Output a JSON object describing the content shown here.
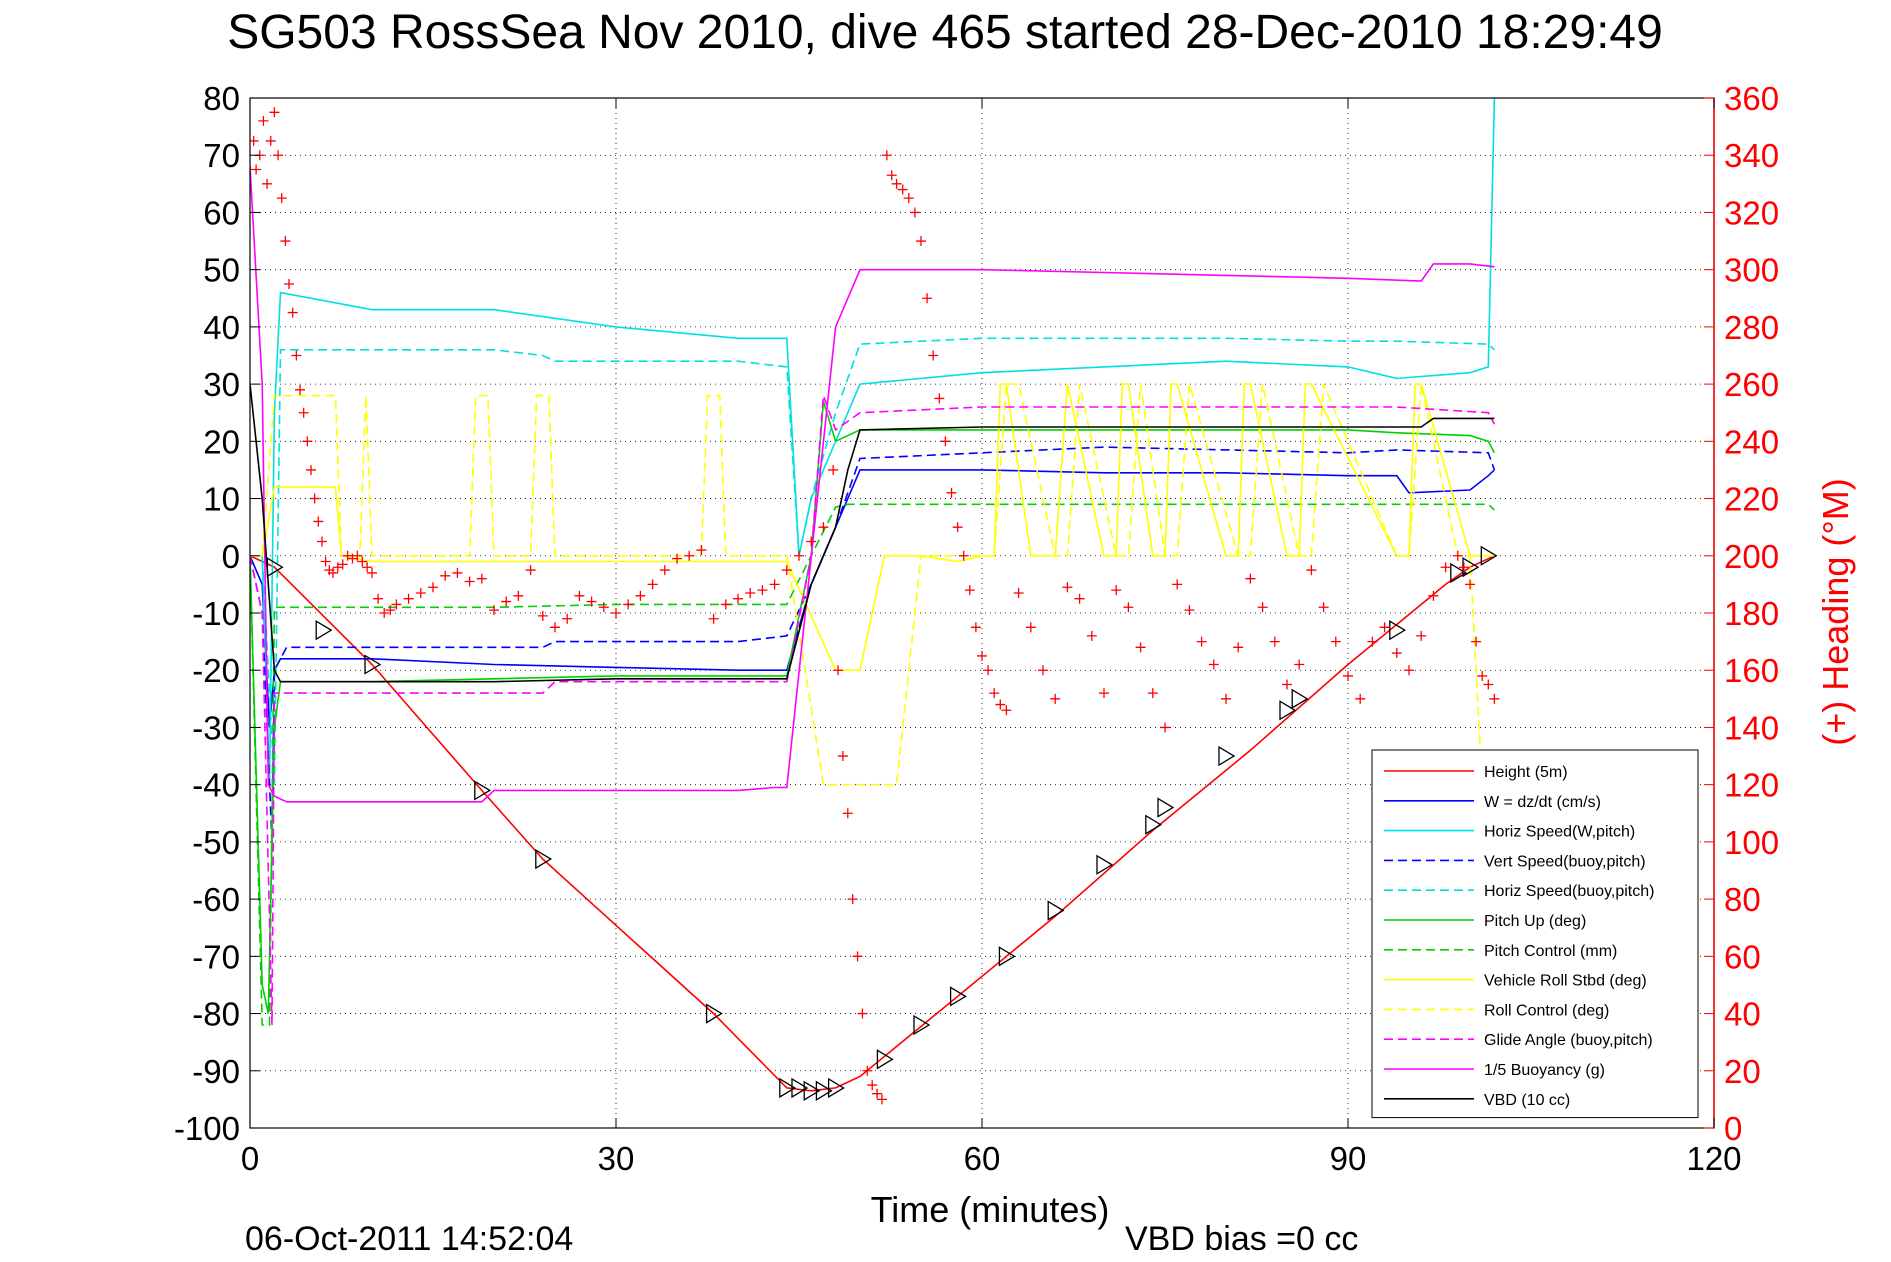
{
  "chart_data": {
    "type": "line",
    "title": "SG503 RossSea Nov 2010, dive 465 started 28-Dec-2010 18:29:49",
    "xlabel": "Time (minutes)",
    "y2label": "(+) Heading (°M)",
    "footer_left": "06-Oct-2011 14:52:04",
    "footer_right": "VBD bias =0 cc",
    "xlim": [
      0,
      120
    ],
    "ylim": [
      -100,
      80
    ],
    "y2lim": [
      0,
      360
    ],
    "xticks": [
      "0",
      "30",
      "60",
      "90",
      "120"
    ],
    "yticks": [
      "80",
      "70",
      "60",
      "50",
      "40",
      "30",
      "20",
      "10",
      "0",
      "-10",
      "-20",
      "-30",
      "-40",
      "-50",
      "-60",
      "-70",
      "-80",
      "-90",
      "-100"
    ],
    "y2ticks": [
      "360",
      "340",
      "320",
      "300",
      "280",
      "260",
      "240",
      "220",
      "200",
      "180",
      "160",
      "140",
      "120",
      "100",
      "80",
      "60",
      "40",
      "20",
      "0"
    ],
    "grid": true,
    "legend_position": "bottom-right",
    "series": [
      {
        "name": "Height (5m)",
        "color": "#ff0000",
        "style": "solid",
        "x": [
          0,
          2,
          10,
          19,
          24,
          38,
          44,
          46,
          48,
          50,
          58,
          66,
          74,
          82,
          90,
          98,
          100,
          102
        ],
        "y": [
          0,
          -2,
          -19,
          -41,
          -53,
          -80,
          -93,
          -93.5,
          -93,
          -91,
          -77,
          -63,
          -48,
          -34,
          -19,
          -5,
          -2,
          0
        ]
      },
      {
        "name": "W = dz/dt (cm/s)",
        "color": "#0000ff",
        "style": "solid",
        "x": [
          0,
          1,
          1.6,
          2,
          2.5,
          10,
          20,
          30,
          40,
          44,
          46,
          48,
          50,
          60,
          70,
          80,
          90,
          94,
          95,
          100,
          101.5,
          102
        ],
        "y": [
          0,
          -5,
          -30,
          -20,
          -18,
          -18,
          -19,
          -19.5,
          -20,
          -20,
          -5,
          5,
          15,
          15,
          14.5,
          14.5,
          14,
          14,
          11,
          11.5,
          14,
          15
        ]
      },
      {
        "name": "Horiz Speed(W,pitch)",
        "color": "#00e0e0",
        "style": "solid",
        "x": [
          0,
          1,
          1.6,
          2,
          2.5,
          10,
          20,
          30,
          40,
          44,
          45,
          46,
          48,
          50,
          60,
          70,
          80,
          90,
          94,
          100,
          101.5,
          102
        ],
        "y": [
          0,
          0,
          -40,
          25,
          46,
          43,
          43,
          40,
          38,
          38,
          0,
          10,
          20,
          30,
          32,
          33,
          34,
          33,
          31,
          32,
          33,
          80
        ]
      },
      {
        "name": "Vert Speed(buoy,pitch)",
        "color": "#0000ff",
        "style": "dashed",
        "x": [
          0,
          1,
          1.8,
          2,
          3,
          20,
          24,
          25,
          40,
          44,
          46,
          48,
          50,
          60,
          70,
          80,
          90,
          94,
          101.5,
          102
        ],
        "y": [
          0,
          -10,
          -50,
          -20,
          -16,
          -16,
          -16,
          -15,
          -15,
          -14,
          -5,
          5,
          17,
          18,
          19,
          18.5,
          18,
          18.5,
          18,
          15
        ]
      },
      {
        "name": "Horiz Speed(buoy,pitch)",
        "color": "#00e0e0",
        "style": "dashed",
        "x": [
          0,
          1,
          2,
          2.5,
          20,
          24,
          25,
          40,
          44,
          45,
          46,
          48,
          50,
          60,
          70,
          80,
          90,
          94,
          101.5,
          102
        ],
        "y": [
          0,
          0,
          -40,
          36,
          36,
          35,
          34,
          34,
          33,
          0,
          10,
          25,
          37,
          38,
          38,
          38,
          37.5,
          37.5,
          37,
          36
        ]
      },
      {
        "name": "Pitch Up (deg)",
        "color": "#00d000",
        "style": "solid",
        "x": [
          0,
          1,
          1.5,
          2,
          2.5,
          10,
          20,
          30,
          40,
          44,
          46,
          47,
          48,
          50,
          60,
          70,
          80,
          90,
          94,
          100,
          101.5,
          102
        ],
        "y": [
          0,
          -75,
          -80,
          -30,
          -22,
          -22,
          -21.5,
          -21,
          -21,
          -21,
          0,
          27,
          20,
          22,
          22,
          22,
          22,
          22,
          21.5,
          21,
          20,
          18
        ]
      },
      {
        "name": "Pitch Control (mm)",
        "color": "#00d000",
        "style": "dashed",
        "x": [
          0,
          1,
          1.6,
          2,
          2.2,
          10,
          20,
          30,
          40,
          44,
          48,
          49,
          60,
          70,
          80,
          90,
          94,
          101.5,
          102
        ],
        "y": [
          0,
          -82,
          -82,
          -9,
          -9,
          -9,
          -9,
          -8.5,
          -8.5,
          -8.5,
          8.5,
          9,
          9,
          9,
          9,
          9,
          9,
          9,
          8
        ]
      },
      {
        "name": "Vehicle Roll Stbd (deg)",
        "color": "#ffff00",
        "style": "solid",
        "x": [
          0,
          1,
          2,
          2.5,
          7,
          7.5,
          10,
          20,
          30,
          40,
          44,
          48,
          50,
          52,
          53,
          55,
          58,
          60,
          61,
          61.5,
          62,
          64,
          65,
          66,
          67,
          70,
          71,
          71.5,
          72,
          74,
          75,
          75.5,
          76,
          80,
          81,
          81.5,
          82,
          85,
          86,
          86.5,
          87,
          94,
          95,
          95.5,
          96,
          100,
          101,
          102
        ],
        "y": [
          0,
          0,
          12,
          12,
          12,
          0,
          -1,
          -1,
          -1,
          -1,
          -1,
          -20,
          -20,
          0,
          0,
          0,
          -1,
          0,
          0,
          30,
          30,
          0,
          0,
          0,
          30,
          0,
          0,
          30,
          30,
          0,
          0,
          30,
          30,
          0,
          0,
          30,
          30,
          0,
          0,
          30,
          30,
          0,
          0,
          30,
          30,
          0,
          0,
          0
        ]
      },
      {
        "name": "Roll Control (deg)",
        "color": "#ffff00",
        "style": "dashed",
        "x": [
          0,
          1,
          2,
          2.5,
          7,
          7.5,
          9,
          9.5,
          10,
          18,
          18.5,
          19.5,
          20,
          23,
          23.5,
          24.5,
          25,
          37,
          37.5,
          38.5,
          39,
          44,
          47,
          48,
          50,
          52,
          53,
          55,
          58,
          60,
          61,
          62,
          63,
          66,
          67,
          68,
          71,
          72,
          73,
          75,
          76,
          77,
          81,
          82,
          83,
          86,
          87,
          88,
          94,
          95,
          96,
          99,
          100,
          101,
          102
        ],
        "y": [
          0,
          0,
          28,
          28,
          28,
          0,
          0,
          28,
          0,
          0,
          28,
          28,
          0,
          0,
          28,
          28,
          0,
          0,
          28,
          28,
          0,
          0,
          -40,
          -40,
          -40,
          -40,
          -40,
          0,
          0,
          0,
          0,
          30,
          30,
          0,
          0,
          30,
          0,
          0,
          30,
          0,
          0,
          30,
          0,
          0,
          30,
          0,
          0,
          30,
          0,
          0,
          30,
          0,
          0,
          -40,
          -40
        ]
      },
      {
        "name": "Glide Angle (buoy,pitch)",
        "color": "#ff00ff",
        "style": "dashed",
        "x": [
          0,
          1,
          1.8,
          2,
          3,
          10,
          20,
          24,
          25,
          40,
          44,
          46,
          47,
          48,
          50,
          60,
          70,
          80,
          90,
          94,
          101.5,
          102
        ],
        "y": [
          0,
          -10,
          -82,
          -24,
          -24,
          -24,
          -24,
          -24,
          -22,
          -22,
          -22,
          0,
          28,
          22,
          25,
          26,
          26,
          26,
          26,
          26,
          25,
          23
        ]
      },
      {
        "name": "1/5 Buoyancy (g)",
        "color": "#ff00ff",
        "style": "solid",
        "x": [
          0,
          1,
          1.5,
          2,
          3,
          10,
          19,
          20,
          40,
          43,
          44,
          48,
          50,
          60,
          70,
          80,
          90,
          96,
          97,
          100,
          102
        ],
        "y": [
          68,
          30,
          -40,
          -42,
          -43,
          -43,
          -43,
          -41,
          -41,
          -40.5,
          -40.5,
          40,
          50,
          50,
          49.5,
          49,
          48.5,
          48,
          51,
          51,
          50.5
        ]
      },
      {
        "name": "VBD (10 cc)",
        "color": "#000000",
        "style": "solid",
        "x": [
          0,
          1,
          2,
          2.5,
          10,
          20,
          30,
          40,
          44,
          46,
          48,
          49,
          50,
          60,
          70,
          80,
          90,
          96,
          97,
          101,
          102
        ],
        "y": [
          30,
          10,
          -20,
          -22,
          -22,
          -22,
          -21.5,
          -21.5,
          -21.5,
          -5,
          5,
          15,
          22,
          22.5,
          22.5,
          22.5,
          22.5,
          22.5,
          24,
          24,
          24
        ]
      }
    ],
    "heading_series": {
      "name": "Heading",
      "axis": "right",
      "marker": "+",
      "color": "#ff0000",
      "x": [
        0.3,
        0.5,
        0.8,
        1.1,
        1.4,
        1.7,
        2.0,
        2.3,
        2.6,
        2.9,
        3.2,
        3.5,
        3.8,
        4.1,
        4.4,
        4.7,
        5.0,
        5.3,
        5.6,
        5.9,
        6.2,
        6.5,
        6.8,
        7.2,
        7.6,
        8.0,
        8.4,
        8.8,
        9.2,
        9.6,
        10.0,
        10.5,
        11.0,
        11.5,
        12.0,
        13.0,
        14.0,
        15.0,
        16.0,
        17.0,
        18.0,
        19.0,
        20.0,
        21.0,
        22.0,
        23.0,
        24.0,
        25.0,
        26.0,
        27.0,
        28.0,
        29.0,
        30.0,
        31.0,
        32.0,
        33.0,
        34.0,
        35.0,
        36.0,
        37.0,
        38.0,
        39.0,
        40.0,
        41.0,
        42.0,
        43.0,
        44.0,
        45.0,
        46.0,
        47.0,
        47.8,
        48.2,
        48.6,
        49.0,
        49.4,
        49.8,
        50.2,
        50.6,
        51.0,
        51.4,
        51.8,
        52.2,
        52.6,
        53.0,
        53.5,
        54.0,
        54.5,
        55.0,
        55.5,
        56.0,
        56.5,
        57.0,
        57.5,
        58.0,
        58.5,
        59.0,
        59.5,
        60.0,
        60.5,
        61.0,
        61.5,
        62.0,
        63.0,
        64.0,
        65.0,
        66.0,
        67.0,
        68.0,
        69.0,
        70.0,
        71.0,
        72.0,
        73.0,
        74.0,
        75.0,
        76.0,
        77.0,
        78.0,
        79.0,
        80.0,
        81.0,
        82.0,
        83.0,
        84.0,
        85.0,
        86.0,
        87.0,
        88.0,
        89.0,
        90.0,
        91.0,
        92.0,
        93.0,
        94.0,
        95.0,
        96.0,
        97.0,
        98.0,
        99.0,
        99.5,
        100.0,
        100.5,
        101.0,
        101.5,
        102.0
      ],
      "y": [
        345,
        335,
        340,
        352,
        330,
        345,
        355,
        340,
        325,
        310,
        295,
        285,
        270,
        258,
        250,
        240,
        230,
        220,
        212,
        205,
        198,
        195,
        194,
        196,
        197,
        200,
        199,
        200,
        198,
        196,
        194,
        185,
        180,
        181,
        183,
        185,
        187,
        189,
        193,
        194,
        191,
        192,
        181,
        184,
        186,
        195,
        179,
        175,
        178,
        186,
        184,
        182,
        180,
        183,
        186,
        190,
        195,
        199,
        200,
        202,
        178,
        183,
        185,
        187,
        188,
        190,
        195,
        200,
        205,
        210,
        230,
        160,
        130,
        110,
        80,
        60,
        40,
        20,
        15,
        12,
        10,
        340,
        333,
        330,
        328,
        325,
        320,
        310,
        290,
        270,
        255,
        240,
        222,
        210,
        200,
        188,
        175,
        165,
        160,
        152,
        148,
        146,
        187,
        175,
        160,
        150,
        189,
        185,
        172,
        152,
        188,
        182,
        168,
        152,
        140,
        190,
        181,
        170,
        162,
        150,
        168,
        192,
        182,
        170,
        155,
        162,
        195,
        182,
        170,
        158,
        150,
        170,
        175,
        166,
        160,
        172,
        186,
        196,
        200,
        196,
        190,
        170,
        158,
        155,
        150
      ]
    },
    "depth_markers": {
      "marker": "triangle",
      "color": "#000000",
      "x": [
        2,
        6,
        10,
        19,
        24,
        38,
        44,
        45,
        46,
        47,
        48,
        52,
        55,
        58,
        62,
        66,
        70,
        74,
        75,
        80,
        85,
        86,
        94,
        99,
        100,
        101.5
      ],
      "y": [
        -2,
        -13,
        -19,
        -41,
        -53,
        -80,
        -93,
        -93,
        -93.5,
        -93.5,
        -93,
        -88,
        -82,
        -77,
        -70,
        -62,
        -54,
        -47,
        -44,
        -35,
        -27,
        -25,
        -13,
        -3,
        -2,
        0
      ]
    }
  }
}
